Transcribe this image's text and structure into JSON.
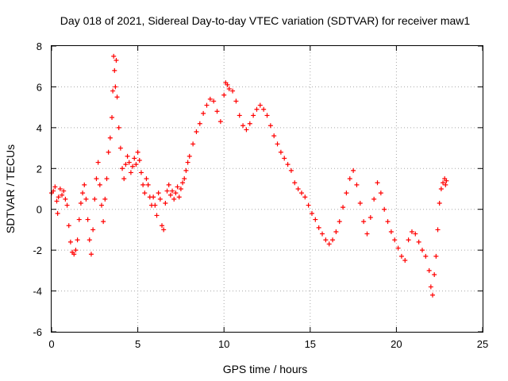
{
  "chart_data": {
    "type": "scatter",
    "title": "Day 018 of 2021, Sidereal Day-to-day VTEC variation (SDTVAR) for receiver maw1",
    "xlabel": "GPS time / hours",
    "ylabel": "SDTVAR / TECUs",
    "xlim": [
      0,
      25
    ],
    "ylim": [
      -6,
      8
    ],
    "xticks": [
      "0",
      "5",
      "10",
      "15",
      "20",
      "25"
    ],
    "yticks": [
      "-6",
      "-4",
      "-2",
      "0",
      "2",
      "4",
      "6",
      "8"
    ],
    "grid": true,
    "marker": "+",
    "color": "#ff0000",
    "series": [
      {
        "name": "SDTVAR",
        "points": [
          [
            0.0,
            0.8
          ],
          [
            0.1,
            0.9
          ],
          [
            0.2,
            1.1
          ],
          [
            0.3,
            0.4
          ],
          [
            0.35,
            -0.2
          ],
          [
            0.4,
            0.6
          ],
          [
            0.5,
            1.0
          ],
          [
            0.6,
            0.7
          ],
          [
            0.7,
            0.9
          ],
          [
            0.8,
            0.5
          ],
          [
            0.9,
            0.2
          ],
          [
            1.0,
            -0.8
          ],
          [
            1.1,
            -1.6
          ],
          [
            1.2,
            -2.1
          ],
          [
            1.3,
            -2.2
          ],
          [
            1.4,
            -2.0
          ],
          [
            1.5,
            -1.5
          ],
          [
            1.6,
            -0.5
          ],
          [
            1.7,
            0.3
          ],
          [
            1.8,
            0.8
          ],
          [
            1.9,
            1.2
          ],
          [
            2.0,
            0.5
          ],
          [
            2.1,
            -0.5
          ],
          [
            2.2,
            -1.5
          ],
          [
            2.3,
            -2.2
          ],
          [
            2.4,
            -1.0
          ],
          [
            2.5,
            0.5
          ],
          [
            2.6,
            1.5
          ],
          [
            2.7,
            2.3
          ],
          [
            2.8,
            1.2
          ],
          [
            2.9,
            0.2
          ],
          [
            3.0,
            -0.6
          ],
          [
            3.1,
            0.5
          ],
          [
            3.2,
            1.5
          ],
          [
            3.3,
            2.8
          ],
          [
            3.4,
            3.5
          ],
          [
            3.5,
            4.5
          ],
          [
            3.55,
            5.8
          ],
          [
            3.6,
            7.5
          ],
          [
            3.65,
            6.8
          ],
          [
            3.7,
            6.0
          ],
          [
            3.75,
            7.3
          ],
          [
            3.8,
            5.5
          ],
          [
            3.9,
            4.0
          ],
          [
            4.0,
            3.0
          ],
          [
            4.1,
            2.0
          ],
          [
            4.2,
            1.5
          ],
          [
            4.3,
            2.2
          ],
          [
            4.4,
            2.6
          ],
          [
            4.5,
            2.3
          ],
          [
            4.6,
            1.8
          ],
          [
            4.7,
            2.1
          ],
          [
            4.8,
            2.5
          ],
          [
            4.9,
            2.2
          ],
          [
            5.0,
            2.8
          ],
          [
            5.1,
            2.4
          ],
          [
            5.2,
            1.8
          ],
          [
            5.3,
            1.2
          ],
          [
            5.4,
            0.8
          ],
          [
            5.5,
            1.5
          ],
          [
            5.6,
            1.2
          ],
          [
            5.7,
            0.6
          ],
          [
            5.8,
            0.2
          ],
          [
            5.9,
            0.6
          ],
          [
            6.0,
            0.2
          ],
          [
            6.1,
            -0.3
          ],
          [
            6.2,
            0.8
          ],
          [
            6.3,
            0.5
          ],
          [
            6.4,
            -0.8
          ],
          [
            6.5,
            -1.0
          ],
          [
            6.6,
            0.3
          ],
          [
            6.7,
            0.9
          ],
          [
            6.8,
            1.2
          ],
          [
            6.9,
            0.7
          ],
          [
            7.0,
            0.9
          ],
          [
            7.1,
            0.5
          ],
          [
            7.2,
            0.8
          ],
          [
            7.3,
            1.1
          ],
          [
            7.4,
            0.6
          ],
          [
            7.5,
            1.0
          ],
          [
            7.6,
            1.3
          ],
          [
            7.7,
            1.5
          ],
          [
            7.8,
            1.9
          ],
          [
            7.9,
            2.3
          ],
          [
            8.0,
            2.6
          ],
          [
            8.2,
            3.2
          ],
          [
            8.4,
            3.8
          ],
          [
            8.6,
            4.2
          ],
          [
            8.8,
            4.7
          ],
          [
            9.0,
            5.1
          ],
          [
            9.2,
            5.4
          ],
          [
            9.4,
            5.3
          ],
          [
            9.6,
            4.8
          ],
          [
            9.8,
            4.3
          ],
          [
            10.0,
            5.6
          ],
          [
            10.1,
            6.2
          ],
          [
            10.2,
            6.1
          ],
          [
            10.3,
            5.9
          ],
          [
            10.5,
            5.8
          ],
          [
            10.7,
            5.3
          ],
          [
            10.9,
            4.6
          ],
          [
            11.1,
            4.1
          ],
          [
            11.3,
            3.9
          ],
          [
            11.5,
            4.2
          ],
          [
            11.7,
            4.6
          ],
          [
            11.9,
            4.9
          ],
          [
            12.1,
            5.1
          ],
          [
            12.3,
            4.9
          ],
          [
            12.5,
            4.6
          ],
          [
            12.7,
            4.1
          ],
          [
            12.9,
            3.6
          ],
          [
            13.1,
            3.2
          ],
          [
            13.3,
            2.8
          ],
          [
            13.5,
            2.5
          ],
          [
            13.7,
            2.2
          ],
          [
            13.9,
            1.9
          ],
          [
            14.1,
            1.3
          ],
          [
            14.3,
            1.0
          ],
          [
            14.5,
            0.8
          ],
          [
            14.7,
            0.6
          ],
          [
            14.9,
            0.2
          ],
          [
            15.1,
            -0.2
          ],
          [
            15.3,
            -0.5
          ],
          [
            15.5,
            -0.9
          ],
          [
            15.7,
            -1.2
          ],
          [
            15.9,
            -1.5
          ],
          [
            16.1,
            -1.7
          ],
          [
            16.3,
            -1.5
          ],
          [
            16.5,
            -1.1
          ],
          [
            16.7,
            -0.6
          ],
          [
            16.9,
            0.1
          ],
          [
            17.1,
            0.8
          ],
          [
            17.3,
            1.5
          ],
          [
            17.5,
            1.9
          ],
          [
            17.7,
            1.2
          ],
          [
            17.9,
            0.3
          ],
          [
            18.1,
            -0.6
          ],
          [
            18.3,
            -1.2
          ],
          [
            18.5,
            -0.4
          ],
          [
            18.7,
            0.5
          ],
          [
            18.9,
            1.3
          ],
          [
            19.1,
            0.8
          ],
          [
            19.3,
            0.0
          ],
          [
            19.5,
            -0.6
          ],
          [
            19.7,
            -1.1
          ],
          [
            19.9,
            -1.5
          ],
          [
            20.1,
            -1.9
          ],
          [
            20.3,
            -2.3
          ],
          [
            20.5,
            -2.5
          ],
          [
            20.7,
            -1.5
          ],
          [
            20.9,
            -1.1
          ],
          [
            21.1,
            -1.2
          ],
          [
            21.3,
            -1.6
          ],
          [
            21.5,
            -2.0
          ],
          [
            21.7,
            -2.3
          ],
          [
            21.9,
            -3.0
          ],
          [
            22.0,
            -3.8
          ],
          [
            22.1,
            -4.2
          ],
          [
            22.2,
            -3.2
          ],
          [
            22.3,
            -2.3
          ],
          [
            22.4,
            -1.0
          ],
          [
            22.5,
            0.3
          ],
          [
            22.6,
            1.0
          ],
          [
            22.7,
            1.3
          ],
          [
            22.8,
            1.5
          ],
          [
            22.85,
            1.2
          ],
          [
            22.9,
            1.4
          ]
        ]
      }
    ]
  }
}
